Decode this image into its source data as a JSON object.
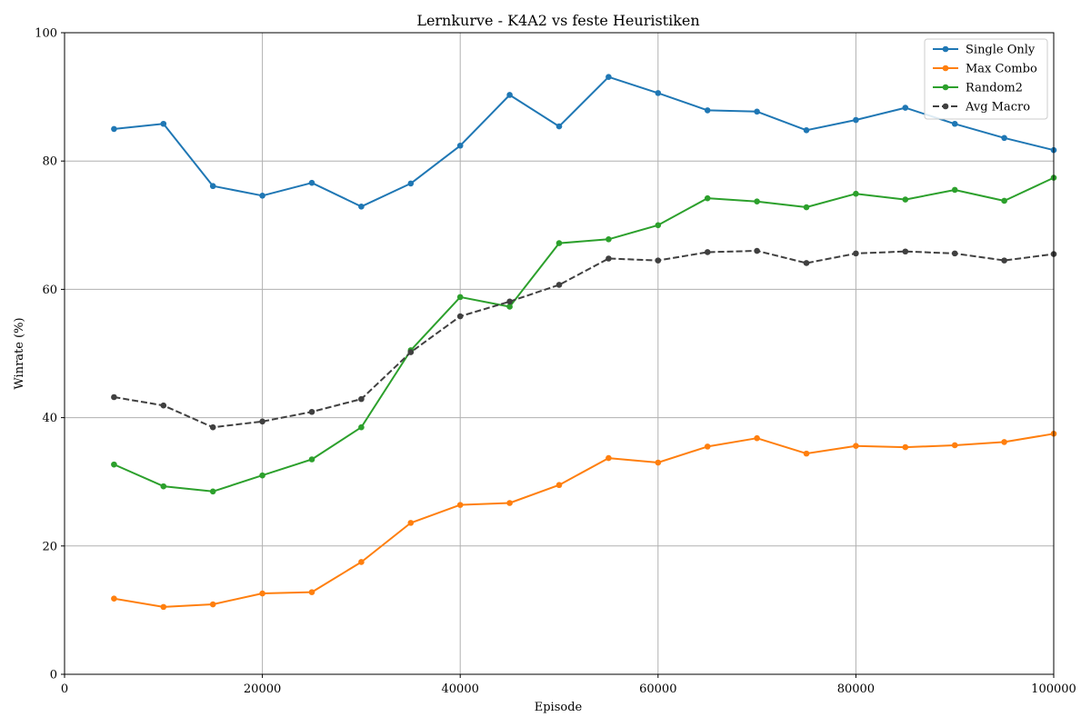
{
  "chart_data": {
    "type": "line",
    "title": "Lernkurve - K4A2 vs feste Heuristiken",
    "xlabel": "Episode",
    "ylabel": "Winrate (%)",
    "xlim": [
      0,
      100000
    ],
    "ylim": [
      0,
      100
    ],
    "x_ticks": [
      0,
      20000,
      40000,
      60000,
      80000,
      100000
    ],
    "y_ticks": [
      0,
      20,
      40,
      60,
      80,
      100
    ],
    "grid": true,
    "legend_position": "top-right",
    "x": [
      5000,
      10000,
      15000,
      20000,
      25000,
      30000,
      35000,
      40000,
      45000,
      50000,
      55000,
      60000,
      65000,
      70000,
      75000,
      80000,
      85000,
      90000,
      95000,
      100000
    ],
    "series": [
      {
        "name": "Single Only",
        "color": "#1f77b4",
        "dashed": false,
        "values": [
          85.0,
          85.8,
          76.1,
          74.6,
          76.6,
          72.9,
          76.5,
          82.4,
          90.3,
          85.4,
          93.1,
          90.6,
          87.9,
          87.7,
          84.8,
          86.4,
          88.3,
          85.8,
          83.6,
          81.7
        ]
      },
      {
        "name": "Max Combo",
        "color": "#ff7f0e",
        "dashed": false,
        "values": [
          11.8,
          10.5,
          10.9,
          12.6,
          12.8,
          17.5,
          23.6,
          26.4,
          26.7,
          29.5,
          33.7,
          33.0,
          35.5,
          36.8,
          34.4,
          35.6,
          35.4,
          35.7,
          36.2,
          37.5
        ]
      },
      {
        "name": "Random2",
        "color": "#2ca02c",
        "dashed": false,
        "values": [
          32.7,
          29.3,
          28.5,
          31.0,
          33.5,
          38.5,
          50.5,
          58.8,
          57.3,
          67.2,
          67.8,
          70.0,
          74.2,
          73.7,
          72.8,
          74.9,
          74.0,
          75.5,
          73.8,
          77.4
        ]
      },
      {
        "name": "Avg Macro",
        "color": "#404040",
        "dashed": true,
        "values": [
          43.2,
          41.9,
          38.5,
          39.4,
          40.9,
          42.9,
          50.2,
          55.8,
          58.1,
          60.7,
          64.8,
          64.5,
          65.8,
          66.0,
          64.1,
          65.6,
          65.9,
          65.6,
          64.5,
          65.5
        ]
      }
    ]
  }
}
